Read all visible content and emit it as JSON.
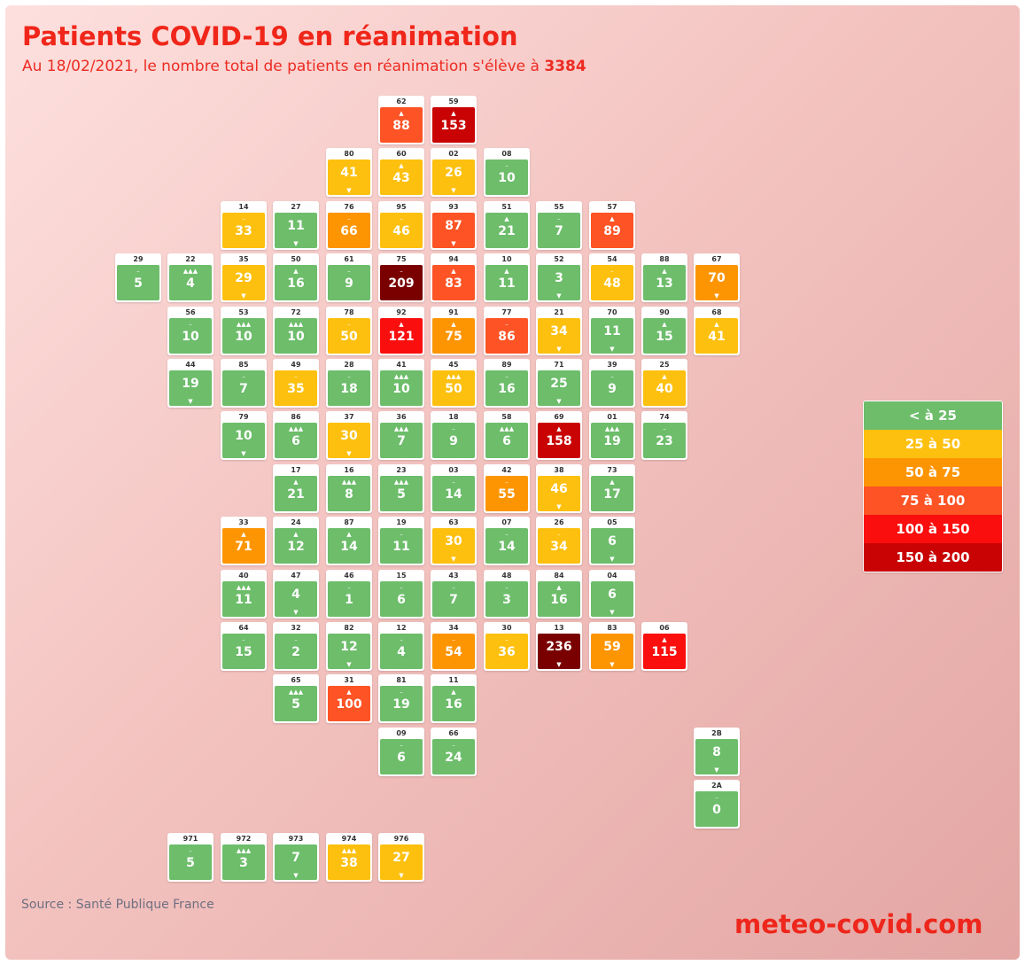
{
  "header": {
    "title": "Patients COVID-19 en réanimation",
    "subtitle_prefix": "Au 18/02/2021, le nombre total de patients en réanimation s'élève à ",
    "subtitle_total": "3384"
  },
  "colors": {
    "g": "#6dbd6b",
    "y": "#fdc00f",
    "o": "#fd9503",
    "r": "#fd5325",
    "rr": "#fa0e0e",
    "dr": "#c90303",
    "br": "#7a0000"
  },
  "trend_symbols": {
    "n": "–",
    "u": "▲",
    "uuu": "▲▲▲",
    "d": "▼"
  },
  "legend": [
    {
      "label": "< à 25",
      "color": "g"
    },
    {
      "label": "25 à 50",
      "color": "y"
    },
    {
      "label": "50 à 75",
      "color": "o"
    },
    {
      "label": "75 à 100",
      "color": "r"
    },
    {
      "label": "100 à 150",
      "color": "rr"
    },
    {
      "label": "150 à 200",
      "color": "dr"
    }
  ],
  "departments": [
    {
      "code": "62",
      "value": "88",
      "color": "r",
      "trend": "u",
      "row": 0,
      "col": 5
    },
    {
      "code": "59",
      "value": "153",
      "color": "dr",
      "trend": "u",
      "row": 0,
      "col": 6
    },
    {
      "code": "80",
      "value": "41",
      "color": "y",
      "trend": "d",
      "row": 1,
      "col": 4
    },
    {
      "code": "60",
      "value": "43",
      "color": "y",
      "trend": "u",
      "row": 1,
      "col": 5
    },
    {
      "code": "02",
      "value": "26",
      "color": "y",
      "trend": "d",
      "row": 1,
      "col": 6
    },
    {
      "code": "08",
      "value": "10",
      "color": "g",
      "trend": "n",
      "row": 1,
      "col": 7
    },
    {
      "code": "14",
      "value": "33",
      "color": "y",
      "trend": "n",
      "row": 2,
      "col": 2
    },
    {
      "code": "27",
      "value": "11",
      "color": "g",
      "trend": "d",
      "row": 2,
      "col": 3
    },
    {
      "code": "76",
      "value": "66",
      "color": "o",
      "trend": "n",
      "row": 2,
      "col": 4
    },
    {
      "code": "95",
      "value": "46",
      "color": "y",
      "trend": "n",
      "row": 2,
      "col": 5
    },
    {
      "code": "93",
      "value": "87",
      "color": "r",
      "trend": "d",
      "row": 2,
      "col": 6
    },
    {
      "code": "51",
      "value": "21",
      "color": "g",
      "trend": "u",
      "row": 2,
      "col": 7
    },
    {
      "code": "55",
      "value": "7",
      "color": "g",
      "trend": "n",
      "row": 2,
      "col": 8
    },
    {
      "code": "57",
      "value": "89",
      "color": "r",
      "trend": "u",
      "row": 2,
      "col": 9
    },
    {
      "code": "29",
      "value": "5",
      "color": "g",
      "trend": "n",
      "row": 3,
      "col": 0
    },
    {
      "code": "22",
      "value": "4",
      "color": "g",
      "trend": "uuu",
      "row": 3,
      "col": 1
    },
    {
      "code": "35",
      "value": "29",
      "color": "y",
      "trend": "d",
      "row": 3,
      "col": 2
    },
    {
      "code": "50",
      "value": "16",
      "color": "g",
      "trend": "u",
      "row": 3,
      "col": 3
    },
    {
      "code": "61",
      "value": "9",
      "color": "g",
      "trend": "n",
      "row": 3,
      "col": 4
    },
    {
      "code": "75",
      "value": "209",
      "color": "br",
      "trend": "n",
      "row": 3,
      "col": 5
    },
    {
      "code": "94",
      "value": "83",
      "color": "r",
      "trend": "u",
      "row": 3,
      "col": 6
    },
    {
      "code": "10",
      "value": "11",
      "color": "g",
      "trend": "u",
      "row": 3,
      "col": 7
    },
    {
      "code": "52",
      "value": "3",
      "color": "g",
      "trend": "d",
      "row": 3,
      "col": 8
    },
    {
      "code": "54",
      "value": "48",
      "color": "y",
      "trend": "n",
      "row": 3,
      "col": 9
    },
    {
      "code": "88",
      "value": "13",
      "color": "g",
      "trend": "u",
      "row": 3,
      "col": 10
    },
    {
      "code": "67",
      "value": "70",
      "color": "o",
      "trend": "d",
      "row": 3,
      "col": 11
    },
    {
      "code": "56",
      "value": "10",
      "color": "g",
      "trend": "n",
      "row": 4,
      "col": 1
    },
    {
      "code": "53",
      "value": "10",
      "color": "g",
      "trend": "uuu",
      "row": 4,
      "col": 2
    },
    {
      "code": "72",
      "value": "10",
      "color": "g",
      "trend": "uuu",
      "row": 4,
      "col": 3
    },
    {
      "code": "78",
      "value": "50",
      "color": "y",
      "trend": "n",
      "row": 4,
      "col": 4
    },
    {
      "code": "92",
      "value": "121",
      "color": "rr",
      "trend": "u",
      "row": 4,
      "col": 5
    },
    {
      "code": "91",
      "value": "75",
      "color": "o",
      "trend": "u",
      "row": 4,
      "col": 6
    },
    {
      "code": "77",
      "value": "86",
      "color": "r",
      "trend": "n",
      "row": 4,
      "col": 7
    },
    {
      "code": "21",
      "value": "34",
      "color": "y",
      "trend": "d",
      "row": 4,
      "col": 8
    },
    {
      "code": "70",
      "value": "11",
      "color": "g",
      "trend": "d",
      "row": 4,
      "col": 9
    },
    {
      "code": "90",
      "value": "15",
      "color": "g",
      "trend": "u",
      "row": 4,
      "col": 10
    },
    {
      "code": "68",
      "value": "41",
      "color": "y",
      "trend": "u",
      "row": 4,
      "col": 11
    },
    {
      "code": "44",
      "value": "19",
      "color": "g",
      "trend": "d",
      "row": 5,
      "col": 1
    },
    {
      "code": "85",
      "value": "7",
      "color": "g",
      "trend": "n",
      "row": 5,
      "col": 2
    },
    {
      "code": "49",
      "value": "35",
      "color": "y",
      "trend": "n",
      "row": 5,
      "col": 3
    },
    {
      "code": "28",
      "value": "18",
      "color": "g",
      "trend": "n",
      "row": 5,
      "col": 4
    },
    {
      "code": "41",
      "value": "10",
      "color": "g",
      "trend": "uuu",
      "row": 5,
      "col": 5
    },
    {
      "code": "45",
      "value": "50",
      "color": "y",
      "trend": "uuu",
      "row": 5,
      "col": 6
    },
    {
      "code": "89",
      "value": "16",
      "color": "g",
      "trend": "n",
      "row": 5,
      "col": 7
    },
    {
      "code": "71",
      "value": "25",
      "color": "g",
      "trend": "d",
      "row": 5,
      "col": 8
    },
    {
      "code": "39",
      "value": "9",
      "color": "g",
      "trend": "n",
      "row": 5,
      "col": 9
    },
    {
      "code": "25",
      "value": "40",
      "color": "y",
      "trend": "u",
      "row": 5,
      "col": 10
    },
    {
      "code": "79",
      "value": "10",
      "color": "g",
      "trend": "d",
      "row": 6,
      "col": 2
    },
    {
      "code": "86",
      "value": "6",
      "color": "g",
      "trend": "uuu",
      "row": 6,
      "col": 3
    },
    {
      "code": "37",
      "value": "30",
      "color": "y",
      "trend": "d",
      "row": 6,
      "col": 4
    },
    {
      "code": "36",
      "value": "7",
      "color": "g",
      "trend": "uuu",
      "row": 6,
      "col": 5
    },
    {
      "code": "18",
      "value": "9",
      "color": "g",
      "trend": "n",
      "row": 6,
      "col": 6
    },
    {
      "code": "58",
      "value": "6",
      "color": "g",
      "trend": "uuu",
      "row": 6,
      "col": 7
    },
    {
      "code": "69",
      "value": "158",
      "color": "dr",
      "trend": "u",
      "row": 6,
      "col": 8
    },
    {
      "code": "01",
      "value": "19",
      "color": "g",
      "trend": "uuu",
      "row": 6,
      "col": 9
    },
    {
      "code": "74",
      "value": "23",
      "color": "g",
      "trend": "n",
      "row": 6,
      "col": 10
    },
    {
      "code": "17",
      "value": "21",
      "color": "g",
      "trend": "u",
      "row": 7,
      "col": 3
    },
    {
      "code": "16",
      "value": "8",
      "color": "g",
      "trend": "uuu",
      "row": 7,
      "col": 4
    },
    {
      "code": "23",
      "value": "5",
      "color": "g",
      "trend": "uuu",
      "row": 7,
      "col": 5
    },
    {
      "code": "03",
      "value": "14",
      "color": "g",
      "trend": "n",
      "row": 7,
      "col": 6
    },
    {
      "code": "42",
      "value": "55",
      "color": "o",
      "trend": "n",
      "row": 7,
      "col": 7
    },
    {
      "code": "38",
      "value": "46",
      "color": "y",
      "trend": "d",
      "row": 7,
      "col": 8
    },
    {
      "code": "73",
      "value": "17",
      "color": "g",
      "trend": "u",
      "row": 7,
      "col": 9
    },
    {
      "code": "33",
      "value": "71",
      "color": "o",
      "trend": "u",
      "row": 8,
      "col": 2
    },
    {
      "code": "24",
      "value": "12",
      "color": "g",
      "trend": "u",
      "row": 8,
      "col": 3
    },
    {
      "code": "87",
      "value": "14",
      "color": "g",
      "trend": "u",
      "row": 8,
      "col": 4
    },
    {
      "code": "19",
      "value": "11",
      "color": "g",
      "trend": "n",
      "row": 8,
      "col": 5
    },
    {
      "code": "63",
      "value": "30",
      "color": "y",
      "trend": "d",
      "row": 8,
      "col": 6
    },
    {
      "code": "07",
      "value": "14",
      "color": "g",
      "trend": "n",
      "row": 8,
      "col": 7
    },
    {
      "code": "26",
      "value": "34",
      "color": "y",
      "trend": "n",
      "row": 8,
      "col": 8
    },
    {
      "code": "05",
      "value": "6",
      "color": "g",
      "trend": "d",
      "row": 8,
      "col": 9
    },
    {
      "code": "40",
      "value": "11",
      "color": "g",
      "trend": "uuu",
      "row": 9,
      "col": 2
    },
    {
      "code": "47",
      "value": "4",
      "color": "g",
      "trend": "d",
      "row": 9,
      "col": 3
    },
    {
      "code": "46",
      "value": "1",
      "color": "g",
      "trend": "n",
      "row": 9,
      "col": 4
    },
    {
      "code": "15",
      "value": "6",
      "color": "g",
      "trend": "n",
      "row": 9,
      "col": 5
    },
    {
      "code": "43",
      "value": "7",
      "color": "g",
      "trend": "n",
      "row": 9,
      "col": 6
    },
    {
      "code": "48",
      "value": "3",
      "color": "g",
      "trend": "n",
      "row": 9,
      "col": 7
    },
    {
      "code": "84",
      "value": "16",
      "color": "g",
      "trend": "u",
      "row": 9,
      "col": 8
    },
    {
      "code": "04",
      "value": "6",
      "color": "g",
      "trend": "d",
      "row": 9,
      "col": 9
    },
    {
      "code": "64",
      "value": "15",
      "color": "g",
      "trend": "n",
      "row": 10,
      "col": 2
    },
    {
      "code": "32",
      "value": "2",
      "color": "g",
      "trend": "n",
      "row": 10,
      "col": 3
    },
    {
      "code": "82",
      "value": "12",
      "color": "g",
      "trend": "d",
      "row": 10,
      "col": 4
    },
    {
      "code": "12",
      "value": "4",
      "color": "g",
      "trend": "n",
      "row": 10,
      "col": 5
    },
    {
      "code": "34",
      "value": "54",
      "color": "o",
      "trend": "n",
      "row": 10,
      "col": 6
    },
    {
      "code": "30",
      "value": "36",
      "color": "y",
      "trend": "n",
      "row": 10,
      "col": 7
    },
    {
      "code": "13",
      "value": "236",
      "color": "br",
      "trend": "d",
      "row": 10,
      "col": 8
    },
    {
      "code": "83",
      "value": "59",
      "color": "o",
      "trend": "d",
      "row": 10,
      "col": 9
    },
    {
      "code": "06",
      "value": "115",
      "color": "rr",
      "trend": "u",
      "row": 10,
      "col": 10
    },
    {
      "code": "65",
      "value": "5",
      "color": "g",
      "trend": "uuu",
      "row": 11,
      "col": 3
    },
    {
      "code": "31",
      "value": "100",
      "color": "r",
      "trend": "u",
      "row": 11,
      "col": 4
    },
    {
      "code": "81",
      "value": "19",
      "color": "g",
      "trend": "n",
      "row": 11,
      "col": 5
    },
    {
      "code": "11",
      "value": "16",
      "color": "g",
      "trend": "u",
      "row": 11,
      "col": 6
    },
    {
      "code": "09",
      "value": "6",
      "color": "g",
      "trend": "n",
      "row": 12,
      "col": 5
    },
    {
      "code": "66",
      "value": "24",
      "color": "g",
      "trend": "n",
      "row": 12,
      "col": 6
    },
    {
      "code": "2B",
      "value": "8",
      "color": "g",
      "trend": "d",
      "row": 12,
      "col": 11
    },
    {
      "code": "2A",
      "value": "0",
      "color": "g",
      "trend": "n",
      "row": 13,
      "col": 11
    },
    {
      "code": "971",
      "value": "5",
      "color": "g",
      "trend": "n",
      "row": 14,
      "col": 1
    },
    {
      "code": "972",
      "value": "3",
      "color": "g",
      "trend": "uuu",
      "row": 14,
      "col": 2
    },
    {
      "code": "973",
      "value": "7",
      "color": "g",
      "trend": "d",
      "row": 14,
      "col": 3
    },
    {
      "code": "974",
      "value": "38",
      "color": "y",
      "trend": "uuu",
      "row": 14,
      "col": 4
    },
    {
      "code": "976",
      "value": "27",
      "color": "y",
      "trend": "d",
      "row": 14,
      "col": 5
    }
  ],
  "footer": {
    "source": "Source : Santé Publique France",
    "brand": "meteo-covid.com"
  }
}
